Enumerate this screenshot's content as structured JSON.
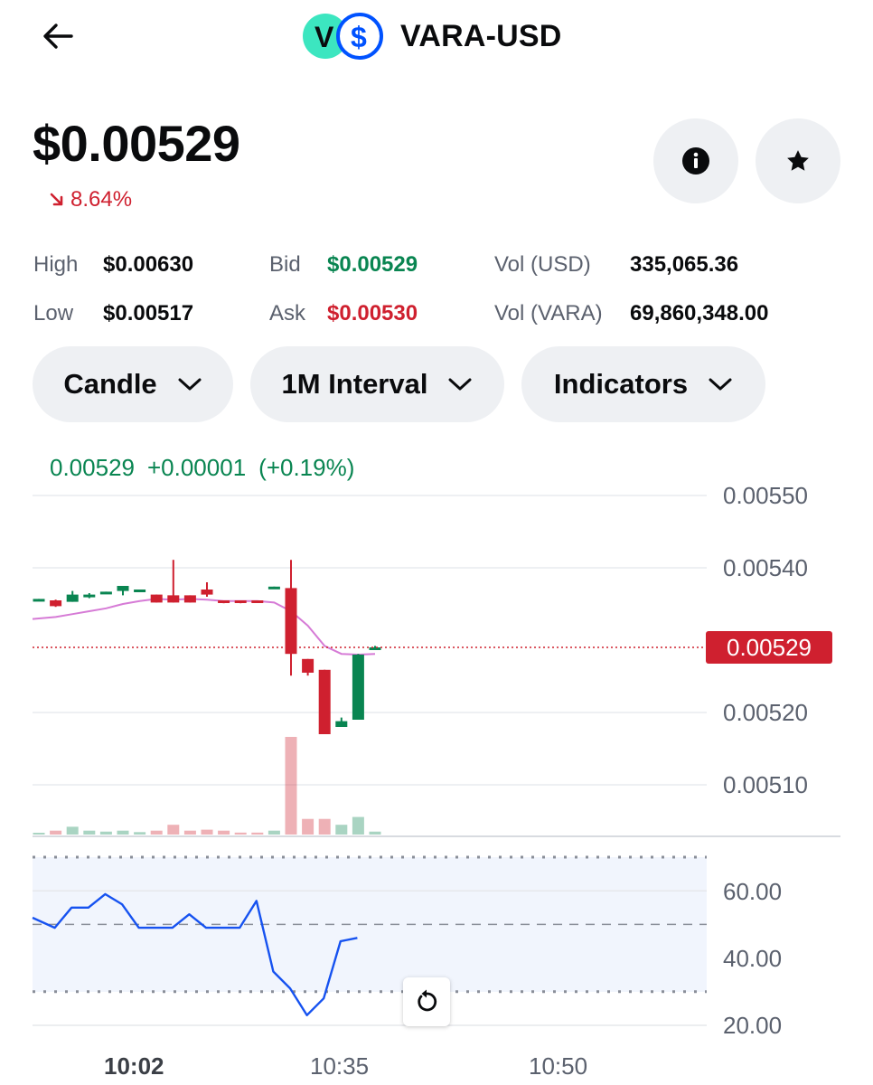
{
  "header": {
    "title": "VARA-USD",
    "logo_letter": "V",
    "logo_symbol": "$",
    "back_icon": "arrow-left-icon"
  },
  "price": {
    "value": "$0.00529",
    "change": "8.64%",
    "change_direction": "down",
    "change_color": "#cf202f"
  },
  "actions": {
    "info_icon": "info-icon",
    "star_icon": "star-icon"
  },
  "stats": {
    "high_label": "High",
    "high_value": "$0.00630",
    "low_label": "Low",
    "low_value": "$0.00517",
    "bid_label": "Bid",
    "bid_value": "$0.00529",
    "ask_label": "Ask",
    "ask_value": "$0.00530",
    "vol_usd_label": "Vol (USD)",
    "vol_usd_value": "335,065.36",
    "vol_vara_label": "Vol (VARA)",
    "vol_vara_value": "69,860,348.00"
  },
  "selectors": {
    "chart_type": "Candle",
    "interval": "1M Interval",
    "indicators": "Indicators"
  },
  "legend": {
    "last": "0.00529",
    "change": "+0.00001",
    "change_pct": "(+0.19%)"
  },
  "colors": {
    "up": "#098551",
    "down": "#cf202f",
    "ma": "#d67bd6",
    "rsi": "#1652f0",
    "rsi_band": "#f1f5fd",
    "logo_teal": "#3ce6c0",
    "logo_blue": "#0052ff"
  },
  "price_axis": {
    "labels": [
      "0.00550",
      "0.00540",
      "0.00520",
      "0.00510"
    ],
    "current": "0.00529"
  },
  "rsi_axis": {
    "labels": [
      "60.00",
      "40.00",
      "20.00"
    ]
  },
  "time_axis": {
    "labels": [
      "10:02",
      "10:35",
      "10:50"
    ]
  },
  "chart_data": [
    {
      "type": "candlestick",
      "ylim": [
        0.00503,
        0.00553
      ],
      "yticks": [
        0.0055,
        0.0054,
        0.0053,
        0.0052,
        0.0051
      ],
      "xlabels": [
        "10:02",
        "10:35",
        "10:50"
      ],
      "last_price": 0.00529,
      "candles": [
        {
          "o": 0.005355,
          "h": 0.005357,
          "l": 0.005355,
          "c": 0.005357
        },
        {
          "o": 0.005355,
          "h": 0.005356,
          "l": 0.005346,
          "c": 0.005347
        },
        {
          "o": 0.005353,
          "h": 0.005368,
          "l": 0.005353,
          "c": 0.005363
        },
        {
          "o": 0.00536,
          "h": 0.005365,
          "l": 0.005358,
          "c": 0.005363
        },
        {
          "o": 0.005367,
          "h": 0.005367,
          "l": 0.005366,
          "c": 0.005367
        },
        {
          "o": 0.005368,
          "h": 0.005375,
          "l": 0.005362,
          "c": 0.005375
        },
        {
          "o": 0.00537,
          "h": 0.00537,
          "l": 0.00537,
          "c": 0.00537
        },
        {
          "o": 0.005363,
          "h": 0.005363,
          "l": 0.005352,
          "c": 0.005352
        },
        {
          "o": 0.005362,
          "h": 0.005411,
          "l": 0.005352,
          "c": 0.005352
        },
        {
          "o": 0.005362,
          "h": 0.005362,
          "l": 0.005352,
          "c": 0.005352
        },
        {
          "o": 0.00537,
          "h": 0.00538,
          "l": 0.00536,
          "c": 0.005363
        },
        {
          "o": 0.005355,
          "h": 0.005355,
          "l": 0.005351,
          "c": 0.005353
        },
        {
          "o": 0.005355,
          "h": 0.005355,
          "l": 0.005351,
          "c": 0.005353
        },
        {
          "o": 0.005355,
          "h": 0.005355,
          "l": 0.005353,
          "c": 0.005354
        },
        {
          "o": 0.005372,
          "h": 0.005374,
          "l": 0.005372,
          "c": 0.005374
        },
        {
          "o": 0.005372,
          "h": 0.005411,
          "l": 0.005251,
          "c": 0.005281
        },
        {
          "o": 0.005274,
          "h": 0.005274,
          "l": 0.005251,
          "c": 0.005255
        },
        {
          "o": 0.005259,
          "h": 0.005259,
          "l": 0.00517,
          "c": 0.00517
        },
        {
          "o": 0.00518,
          "h": 0.005193,
          "l": 0.00518,
          "c": 0.005188
        },
        {
          "o": 0.00519,
          "h": 0.005281,
          "l": 0.00519,
          "c": 0.00528
        },
        {
          "o": 0.00529,
          "h": 0.005292,
          "l": 0.005288,
          "c": 0.00529
        }
      ],
      "moving_average": [
        0.00533,
        0.005332,
        0.005336,
        0.00534,
        0.005344,
        0.00535,
        0.005354,
        0.005357,
        0.005356,
        0.005357,
        0.005356,
        0.005354,
        0.005354,
        0.005354,
        0.005352,
        0.00534,
        0.00532,
        0.005292,
        0.005281,
        0.00528,
        0.005281
      ],
      "volume_rel": [
        0.03,
        0.08,
        0.16,
        0.08,
        0.06,
        0.08,
        0.05,
        0.08,
        0.2,
        0.08,
        0.1,
        0.08,
        0.04,
        0.04,
        0.08,
        2.0,
        0.32,
        0.32,
        0.2,
        0.36,
        0.06
      ]
    },
    {
      "type": "line",
      "name": "RSI",
      "ylim": [
        18,
        72
      ],
      "yticks": [
        60,
        40,
        20
      ],
      "bands": [
        70,
        50,
        30
      ],
      "values": [
        52,
        49,
        55,
        55,
        59,
        56,
        49,
        49,
        49,
        53,
        49,
        49,
        49,
        57,
        36,
        31,
        23,
        28,
        45,
        46
      ]
    }
  ]
}
